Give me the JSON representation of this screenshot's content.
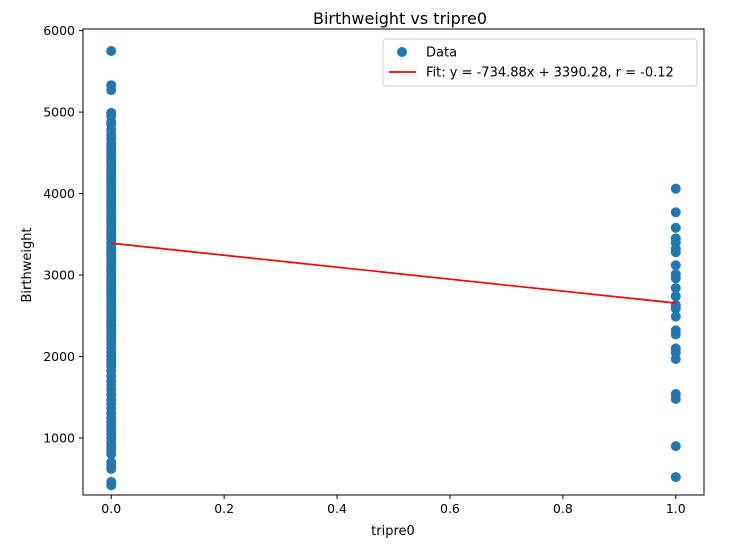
{
  "chart_data": {
    "type": "scatter",
    "title": "Birthweight vs tripre0",
    "xlabel": "tripre0",
    "ylabel": "Birthweight",
    "xlim": [
      -0.05,
      1.05
    ],
    "ylim": [
      300,
      6020
    ],
    "x_ticks": [
      0.0,
      0.2,
      0.4,
      0.6,
      0.8,
      1.0
    ],
    "x_tick_labels": [
      "0.0",
      "0.2",
      "0.4",
      "0.6",
      "0.8",
      "1.0"
    ],
    "y_ticks": [
      1000,
      2000,
      3000,
      4000,
      5000,
      6000
    ],
    "y_tick_labels": [
      "1000",
      "2000",
      "3000",
      "4000",
      "5000",
      "6000"
    ],
    "grid": false,
    "legend_position": "top-right",
    "series": [
      {
        "name": "Data",
        "kind": "scatter",
        "color": "#1f77b4",
        "points": [
          [
            0,
            5750
          ],
          [
            0,
            5330
          ],
          [
            0,
            5270
          ],
          [
            0,
            4990
          ],
          [
            0,
            4950
          ],
          [
            0,
            4880
          ],
          [
            0,
            4850
          ],
          [
            0,
            4780
          ],
          [
            0,
            4720
          ],
          [
            0,
            4680
          ],
          [
            0,
            4620
          ],
          [
            0,
            4580
          ],
          [
            0,
            4540
          ],
          [
            0,
            4500
          ],
          [
            0,
            4470
          ],
          [
            0,
            4440
          ],
          [
            0,
            4400
          ],
          [
            0,
            4370
          ],
          [
            0,
            4340
          ],
          [
            0,
            4300
          ],
          [
            0,
            4270
          ],
          [
            0,
            4240
          ],
          [
            0,
            4200
          ],
          [
            0,
            4170
          ],
          [
            0,
            4140
          ],
          [
            0,
            4100
          ],
          [
            0,
            4070
          ],
          [
            0,
            4040
          ],
          [
            0,
            4000
          ],
          [
            0,
            3970
          ],
          [
            0,
            3940
          ],
          [
            0,
            3900
          ],
          [
            0,
            3870
          ],
          [
            0,
            3840
          ],
          [
            0,
            3800
          ],
          [
            0,
            3770
          ],
          [
            0,
            3740
          ],
          [
            0,
            3700
          ],
          [
            0,
            3670
          ],
          [
            0,
            3640
          ],
          [
            0,
            3600
          ],
          [
            0,
            3570
          ],
          [
            0,
            3540
          ],
          [
            0,
            3500
          ],
          [
            0,
            3470
          ],
          [
            0,
            3440
          ],
          [
            0,
            3400
          ],
          [
            0,
            3370
          ],
          [
            0,
            3340
          ],
          [
            0,
            3300
          ],
          [
            0,
            3270
          ],
          [
            0,
            3240
          ],
          [
            0,
            3200
          ],
          [
            0,
            3170
          ],
          [
            0,
            3140
          ],
          [
            0,
            3100
          ],
          [
            0,
            3070
          ],
          [
            0,
            3040
          ],
          [
            0,
            3000
          ],
          [
            0,
            2970
          ],
          [
            0,
            2940
          ],
          [
            0,
            2900
          ],
          [
            0,
            2870
          ],
          [
            0,
            2840
          ],
          [
            0,
            2800
          ],
          [
            0,
            2770
          ],
          [
            0,
            2740
          ],
          [
            0,
            2700
          ],
          [
            0,
            2670
          ],
          [
            0,
            2640
          ],
          [
            0,
            2600
          ],
          [
            0,
            2570
          ],
          [
            0,
            2540
          ],
          [
            0,
            2500
          ],
          [
            0,
            2470
          ],
          [
            0,
            2440
          ],
          [
            0,
            2400
          ],
          [
            0,
            2370
          ],
          [
            0,
            2340
          ],
          [
            0,
            2300
          ],
          [
            0,
            2270
          ],
          [
            0,
            2240
          ],
          [
            0,
            2200
          ],
          [
            0,
            2150
          ],
          [
            0,
            2100
          ],
          [
            0,
            2050
          ],
          [
            0,
            2010
          ],
          [
            0,
            1960
          ],
          [
            0,
            1920
          ],
          [
            0,
            1880
          ],
          [
            0,
            1820
          ],
          [
            0,
            1760
          ],
          [
            0,
            1700
          ],
          [
            0,
            1650
          ],
          [
            0,
            1590
          ],
          [
            0,
            1530
          ],
          [
            0,
            1470
          ],
          [
            0,
            1420
          ],
          [
            0,
            1360
          ],
          [
            0,
            1300
          ],
          [
            0,
            1250
          ],
          [
            0,
            1200
          ],
          [
            0,
            1150
          ],
          [
            0,
            1100
          ],
          [
            0,
            1050
          ],
          [
            0,
            1000
          ],
          [
            0,
            940
          ],
          [
            0,
            900
          ],
          [
            0,
            860
          ],
          [
            0,
            800
          ],
          [
            0,
            700
          ],
          [
            0,
            660
          ],
          [
            0,
            620
          ],
          [
            0,
            460
          ],
          [
            0,
            420
          ],
          [
            1,
            4060
          ],
          [
            1,
            3770
          ],
          [
            1,
            3580
          ],
          [
            1,
            3450
          ],
          [
            1,
            3400
          ],
          [
            1,
            3320
          ],
          [
            1,
            3280
          ],
          [
            1,
            3120
          ],
          [
            1,
            3010
          ],
          [
            1,
            2960
          ],
          [
            1,
            2840
          ],
          [
            1,
            2740
          ],
          [
            1,
            2630
          ],
          [
            1,
            2590
          ],
          [
            1,
            2490
          ],
          [
            1,
            2320
          ],
          [
            1,
            2270
          ],
          [
            1,
            2100
          ],
          [
            1,
            2050
          ],
          [
            1,
            1970
          ],
          [
            1,
            1540
          ],
          [
            1,
            1480
          ],
          [
            1,
            900
          ],
          [
            1,
            520
          ]
        ]
      },
      {
        "name": "Fit: y = -734.88x + 3390.28, r = -0.12",
        "kind": "line",
        "color": "#ff0000",
        "points": [
          [
            0,
            3390.28
          ],
          [
            1,
            2655.4
          ]
        ]
      }
    ]
  }
}
